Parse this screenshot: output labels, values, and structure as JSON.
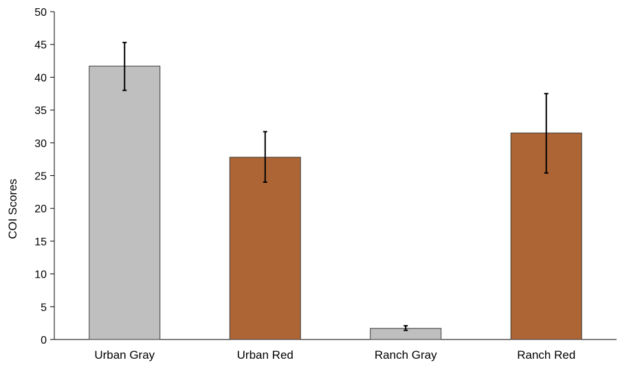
{
  "chart_data": {
    "type": "bar",
    "title": "",
    "xlabel": "",
    "ylabel": "COI Scores",
    "ylim": [
      0,
      50
    ],
    "yticks": [
      0,
      5,
      10,
      15,
      20,
      25,
      30,
      35,
      40,
      45,
      50
    ],
    "categories": [
      "Urban Gray",
      "Urban Red",
      "Ranch Gray",
      "Ranch Red"
    ],
    "values": [
      41.7,
      27.8,
      1.7,
      31.5
    ],
    "error_low": [
      38.0,
      24.0,
      1.4,
      25.4
    ],
    "error_high": [
      45.3,
      31.7,
      2.1,
      37.5
    ],
    "bar_colors": [
      "#bfbfbf",
      "#ae6535",
      "#bfbfbf",
      "#ae6535"
    ],
    "bar_edge_color": "#3a3a3a",
    "error_bar_color": "#000000",
    "grid": false,
    "legend": "none"
  }
}
